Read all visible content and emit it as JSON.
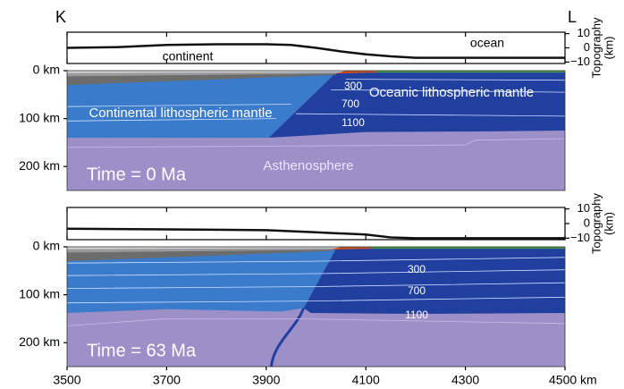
{
  "chart_data": {
    "type": "line",
    "section_labels": [
      "K",
      "L"
    ],
    "xlim": [
      3500,
      4500
    ],
    "xticks": [
      3500,
      3700,
      3900,
      4100,
      4300,
      {
        "value": 4500,
        "label": "4500 km"
      }
    ],
    "panels": [
      {
        "ylabel": [
          "Topography",
          "(km)"
        ],
        "ylim": [
          -11,
          11
        ],
        "yticks": [
          10,
          0,
          {
            "value": -10,
            "label": "−10"
          }
        ],
        "x": [
          3500,
          3600,
          3700,
          3800,
          3900,
          3950,
          4000,
          4050,
          4100,
          4150,
          4200,
          4300,
          4400,
          4500
        ],
        "values": [
          0,
          0.5,
          2,
          2.5,
          2.5,
          2,
          0,
          -2.5,
          -4.5,
          -6,
          -7,
          -7,
          -7,
          -7
        ],
        "annotations": [
          "ocean",
          "continent"
        ],
        "depth_lim": [
          0,
          250
        ],
        "depth_ticks": [
          {
            "value": 0,
            "label": "0 km"
          },
          {
            "value": 100,
            "label": "100 km"
          },
          {
            "value": 200,
            "label": "200 km"
          }
        ],
        "isotherm_labels": [
          "300",
          "700",
          "1100"
        ],
        "region_labels": [
          "Oceanic lithospheric mantle",
          "Continental lithospheric mantle",
          "Asthenosphere"
        ],
        "time_label": "Time = 0 Ma"
      },
      {
        "ylabel": [
          "Topography",
          "(km)"
        ],
        "ylim": [
          -11,
          11
        ],
        "yticks": [
          10,
          0,
          {
            "value": -10,
            "label": "−10"
          }
        ],
        "x": [
          3500,
          3700,
          3900,
          4000,
          4100,
          4150,
          4200,
          4300,
          4400,
          4500
        ],
        "values": [
          -3.5,
          -4,
          -4.5,
          -6,
          -7.5,
          -9.5,
          -10,
          -10,
          -10,
          -10
        ],
        "depth_lim": [
          0,
          250
        ],
        "depth_ticks": [
          {
            "value": 0,
            "label": "0 km"
          },
          {
            "value": 100,
            "label": "100 km"
          },
          {
            "value": 200,
            "label": "200 km"
          }
        ],
        "isotherm_labels": [
          "300",
          "700",
          "1100"
        ],
        "time_label": "Time = 63 Ma"
      }
    ]
  }
}
